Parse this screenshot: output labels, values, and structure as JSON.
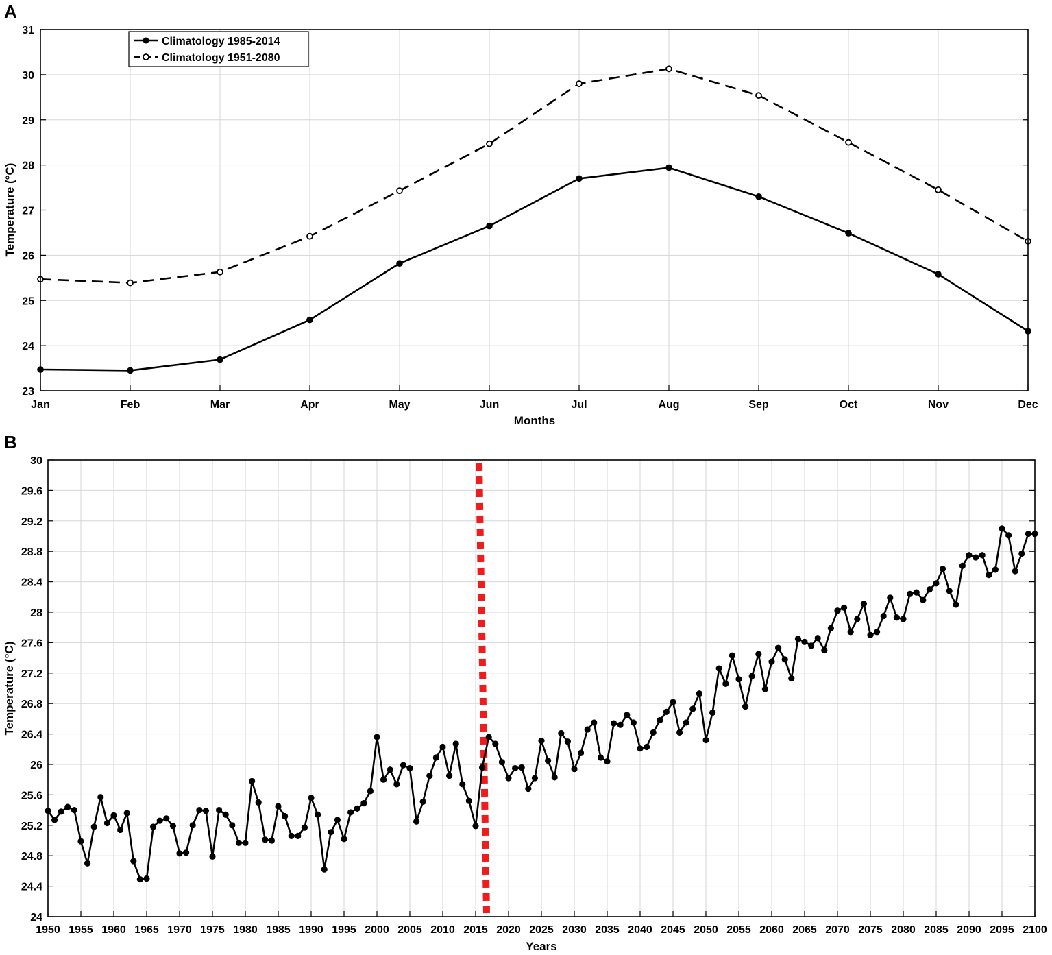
{
  "panels": {
    "a": {
      "label": "A"
    },
    "b": {
      "label": "B"
    }
  },
  "chart_data": [
    {
      "type": "line",
      "xlabel": "Months",
      "ylabel": "Temperature (°C)",
      "categories": [
        "Jan",
        "Feb",
        "Mar",
        "Apr",
        "May",
        "Jun",
        "Jul",
        "Aug",
        "Sep",
        "Oct",
        "Nov",
        "Dec"
      ],
      "ylim": [
        23,
        31
      ],
      "yticks": [
        "23",
        "24",
        "25",
        "26",
        "27",
        "28",
        "29",
        "30",
        "31"
      ],
      "grid": true,
      "legend": "top-left",
      "series": [
        {
          "name": "Climatology 1985-2014",
          "line": "solid",
          "marker": "filled-circle",
          "color": "#000000",
          "values": [
            23.47,
            23.45,
            23.69,
            24.57,
            25.82,
            26.65,
            27.7,
            27.94,
            27.3,
            26.49,
            25.58,
            24.32
          ]
        },
        {
          "name": "Climatology 1951-2080",
          "line": "dashed",
          "marker": "open-circle",
          "color": "#000000",
          "values": [
            25.47,
            25.39,
            25.63,
            26.42,
            27.43,
            28.47,
            29.8,
            30.13,
            29.54,
            28.5,
            27.45,
            26.31
          ]
        }
      ]
    },
    {
      "type": "line",
      "xlabel": "Years",
      "ylabel": "Temperature (°C)",
      "xlim": [
        1950,
        2100
      ],
      "xticks": [
        "1950",
        "1955",
        "1960",
        "1965",
        "1970",
        "1975",
        "1980",
        "1985",
        "1990",
        "1995",
        "2000",
        "2005",
        "2010",
        "2015",
        "2020",
        "2025",
        "2030",
        "2035",
        "2040",
        "2045",
        "2050",
        "2055",
        "2060",
        "2065",
        "2070",
        "2075",
        "2080",
        "2085",
        "2090",
        "2095",
        "2100"
      ],
      "ylim": [
        24,
        30
      ],
      "yticks": [
        "24",
        "24.4",
        "24.8",
        "25.2",
        "25.6",
        "26",
        "26.4",
        "26.8",
        "27.2",
        "27.6",
        "28",
        "28.4",
        "28.8",
        "29.2",
        "29.6",
        "30"
      ],
      "grid": true,
      "marker_line": {
        "x": 2015,
        "color": "#ee1c1c",
        "style": "dotted"
      },
      "series": [
        {
          "name": "",
          "color": "#000000",
          "marker": "filled-circle",
          "x": [
            1950,
            1951,
            1952,
            1953,
            1954,
            1955,
            1956,
            1957,
            1958,
            1959,
            1960,
            1961,
            1962,
            1963,
            1964,
            1965,
            1966,
            1967,
            1968,
            1969,
            1970,
            1971,
            1972,
            1973,
            1974,
            1975,
            1976,
            1977,
            1978,
            1979,
            1980,
            1981,
            1982,
            1983,
            1984,
            1985,
            1986,
            1987,
            1988,
            1989,
            1990,
            1991,
            1992,
            1993,
            1994,
            1995,
            1996,
            1997,
            1998,
            1999,
            2000,
            2001,
            2002,
            2003,
            2004,
            2005,
            2006,
            2007,
            2008,
            2009,
            2010,
            2011,
            2012,
            2013,
            2014,
            2015,
            2016,
            2017,
            2018,
            2019,
            2020,
            2021,
            2022,
            2023,
            2024,
            2025,
            2026,
            2027,
            2028,
            2029,
            2030,
            2031,
            2032,
            2033,
            2034,
            2035,
            2036,
            2037,
            2038,
            2039,
            2040,
            2041,
            2042,
            2043,
            2044,
            2045,
            2046,
            2047,
            2048,
            2049,
            2050,
            2051,
            2052,
            2053,
            2054,
            2055,
            2056,
            2057,
            2058,
            2059,
            2060,
            2061,
            2062,
            2063,
            2064,
            2065,
            2066,
            2067,
            2068,
            2069,
            2070,
            2071,
            2072,
            2073,
            2074,
            2075,
            2076,
            2077,
            2078,
            2079,
            2080,
            2081,
            2082,
            2083,
            2084,
            2085,
            2086,
            2087,
            2088,
            2089,
            2090,
            2091,
            2092,
            2093,
            2094,
            2095,
            2096,
            2097,
            2098,
            2099,
            2100
          ],
          "values": [
            25.39,
            25.27,
            25.38,
            25.44,
            25.4,
            24.99,
            24.7,
            25.18,
            25.57,
            25.23,
            25.33,
            25.14,
            25.36,
            24.73,
            24.49,
            24.5,
            25.18,
            25.26,
            25.29,
            25.19,
            24.83,
            24.84,
            25.2,
            25.4,
            25.39,
            24.79,
            25.4,
            25.34,
            25.2,
            24.97,
            24.97,
            25.78,
            25.5,
            25.01,
            25.0,
            25.45,
            25.32,
            25.06,
            25.06,
            25.17,
            25.56,
            25.34,
            24.62,
            25.11,
            25.27,
            25.02,
            25.37,
            25.42,
            25.49,
            25.65,
            26.36,
            25.8,
            25.93,
            25.74,
            25.99,
            25.95,
            25.25,
            25.51,
            25.85,
            26.09,
            26.23,
            25.85,
            26.27,
            25.74,
            25.52,
            25.19,
            25.96,
            26.36,
            26.27,
            26.03,
            25.82,
            25.95,
            25.96,
            25.68,
            25.82,
            26.31,
            26.05,
            25.83,
            26.41,
            26.3,
            25.94,
            26.15,
            26.46,
            26.55,
            26.09,
            26.04,
            26.54,
            26.52,
            26.65,
            26.55,
            26.21,
            26.23,
            26.42,
            26.58,
            26.69,
            26.82,
            26.42,
            26.55,
            26.73,
            26.93,
            26.32,
            26.68,
            27.26,
            27.06,
            27.43,
            27.12,
            26.76,
            27.16,
            27.45,
            26.99,
            27.35,
            27.53,
            27.38,
            27.13,
            27.65,
            27.61,
            27.56,
            27.66,
            27.5,
            27.79,
            28.02,
            28.06,
            27.74,
            27.91,
            28.11,
            27.7,
            27.74,
            27.95,
            28.19,
            27.93,
            27.91,
            28.24,
            28.26,
            28.16,
            28.3,
            28.38,
            28.57,
            28.28,
            28.1,
            28.61,
            28.75,
            28.72,
            28.75,
            28.49,
            28.56,
            29.1,
            29.01,
            28.54,
            28.77,
            29.03,
            29.03
          ]
        }
      ]
    }
  ]
}
